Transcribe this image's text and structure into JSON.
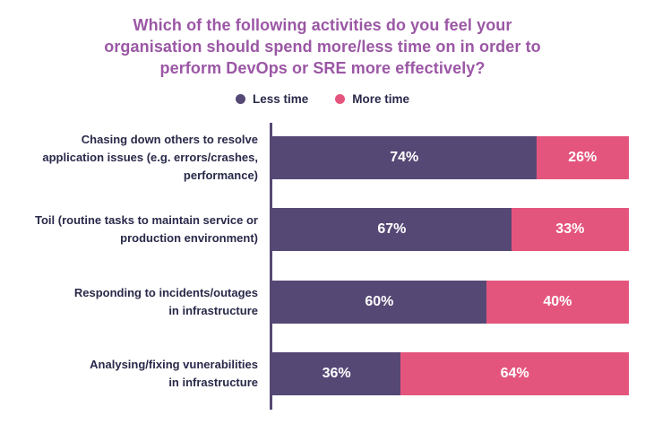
{
  "chart_data": {
    "type": "bar",
    "orientation": "horizontal-stacked",
    "title": "Which of the following activities do you feel your\norganisation should spend more/less time on in order to\nperform DevOps or SRE more effectively?",
    "categories": [
      "Chasing down others to resolve\napplication issues (e.g. errors/crashes,\nperformance)",
      "Toil (routine tasks to maintain service or\nproduction environment)",
      "Responding to incidents/outages\nin infrastructure",
      "Analysing/fixing vunerabilities\nin infrastructure"
    ],
    "series": [
      {
        "name": "Less time",
        "color": "#564875",
        "values": [
          74,
          67,
          60,
          36
        ]
      },
      {
        "name": "More time",
        "color": "#e4557e",
        "values": [
          26,
          33,
          40,
          64
        ]
      }
    ],
    "value_suffix": "%",
    "xlim": [
      0,
      100
    ],
    "grid": false,
    "legend_position": "top-center",
    "bar_value_label_color": "#ffffff"
  },
  "colors": {
    "title_text": "#9b57a5",
    "category_text": "#29294a",
    "legend_text": "#29294a",
    "less_time": "#564875",
    "more_time": "#e4557e",
    "axis_line": "#564875",
    "background": "#ffffff"
  }
}
